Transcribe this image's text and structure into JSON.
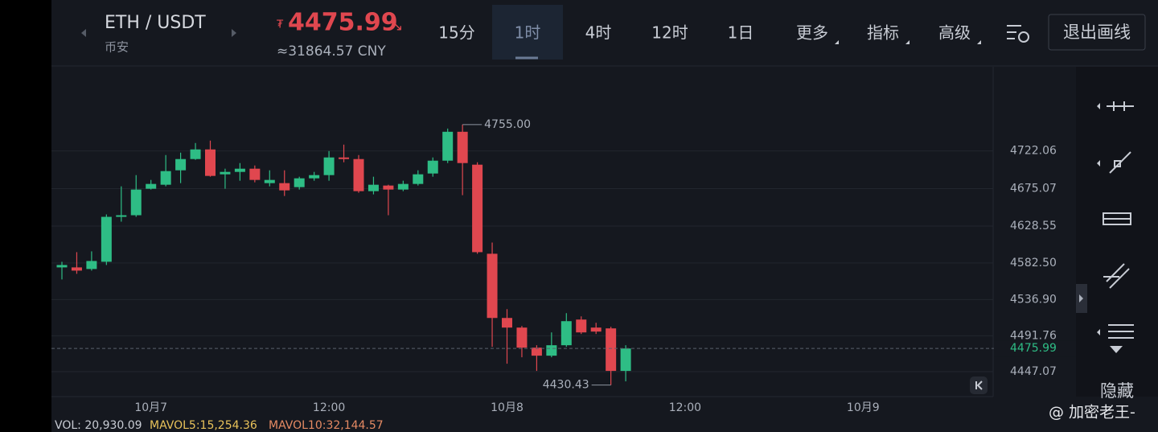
{
  "header": {
    "pair": "ETH / USDT",
    "exchange": "币安",
    "currency_mark": "₮",
    "price": "4475.99",
    "trend": "↘",
    "cny": "≈31864.57 CNY"
  },
  "toolbar": {
    "tabs": [
      "15分",
      "1时",
      "4时",
      "12时",
      "1日",
      "更多",
      "指标",
      "高级"
    ],
    "active": 1,
    "exit": "退出画线"
  },
  "sidebar": {
    "hide": "隐藏"
  },
  "volume": {
    "vol": "VOL: 20,930.09",
    "mavol5": "MAVOL5:15,254.36",
    "mavol10": "MAVOL10:32,144.57"
  },
  "watermark": "@ 加密老王-",
  "chart_data": {
    "type": "candlestick",
    "categories": [
      null,
      null,
      null,
      null,
      null,
      null,
      "10月7",
      null,
      null,
      null,
      null,
      null,
      null,
      null,
      null,
      null,
      null,
      null,
      "12:00",
      null,
      null,
      null,
      null,
      null,
      null,
      null,
      null,
      null,
      null,
      null,
      "10月8",
      null,
      null,
      null,
      null,
      null,
      null,
      null,
      null,
      null,
      null,
      null,
      "12:00",
      null,
      null,
      null,
      null,
      null,
      null,
      null,
      null,
      null,
      null,
      null,
      "10月9"
    ],
    "open": [
      4577,
      4577,
      4575,
      4584,
      4640,
      4642,
      4675,
      4680,
      4698,
      4712,
      4724,
      4693,
      4696,
      4700,
      4682,
      4682,
      4677,
      4688,
      4692,
      4714,
      4712,
      4672,
      4679,
      4674,
      4681,
      4694,
      4710,
      4746,
      4705,
      4594,
      4514,
      4502,
      4477,
      4467,
      4480,
      4512,
      4502,
      4501,
      4448,
      null,
      null,
      null,
      null,
      null,
      null,
      null,
      null,
      null,
      null,
      null,
      null,
      null,
      null,
      null,
      null
    ],
    "high": [
      4584,
      4596,
      4597,
      4643,
      4678,
      4692,
      4686,
      4717,
      4720,
      4732,
      4735,
      4700,
      4707,
      4704,
      4698,
      4698,
      4690,
      4696,
      4722,
      4730,
      4717,
      4690,
      4680,
      4685,
      4698,
      4714,
      4750,
      4755,
      4708,
      4608,
      4525,
      4504,
      4480,
      4496,
      4520,
      4516,
      4508,
      4503,
      4480,
      null,
      null,
      null,
      null,
      null,
      null,
      null,
      null,
      null,
      null,
      null,
      null,
      null,
      null,
      null,
      null
    ],
    "low": [
      4562,
      4569,
      4573,
      4580,
      4634,
      4640,
      4674,
      4678,
      4682,
      4711,
      4690,
      4675,
      4685,
      4683,
      4678,
      4666,
      4674,
      4685,
      4685,
      4708,
      4670,
      4668,
      4642,
      4672,
      4679,
      4690,
      4707,
      4667,
      4594,
      4478,
      4457,
      4465,
      4448,
      4465,
      4478,
      4494,
      4494,
      4430.43,
      4435,
      null,
      null,
      null,
      null,
      null,
      null,
      null,
      null,
      null,
      null,
      null,
      null,
      null,
      null,
      null,
      null
    ],
    "close": [
      4580,
      4573,
      4585,
      4640,
      4642,
      4674,
      4681,
      4697,
      4712,
      4724,
      4691,
      4696,
      4700,
      4686,
      4686,
      4673,
      4688,
      4692,
      4714,
      4712,
      4672,
      4680,
      4674,
      4681,
      4693,
      4710,
      4746,
      4707,
      4596,
      4514,
      4502,
      4477,
      4467,
      4480,
      4510,
      4496,
      4497,
      4448,
      4475.99,
      null,
      null,
      null,
      null,
      null,
      null,
      null,
      null,
      null,
      null,
      null,
      null,
      null,
      null,
      null,
      null
    ],
    "up_color": "#2ebd85",
    "down_color": "#e0474f",
    "high_label": "4755.00",
    "low_label": "4430.43",
    "ylim": [
      4416,
      4827
    ],
    "yticks": [
      4447.07,
      {
        "value": 4491.76,
        "label": "4491.76"
      },
      {
        "value": 4536.9,
        "label": "4536.90"
      },
      {
        "value": 4582.5,
        "label": "4582.50"
      },
      4628.55,
      4675.07,
      4722.06
    ],
    "grid": true
  }
}
